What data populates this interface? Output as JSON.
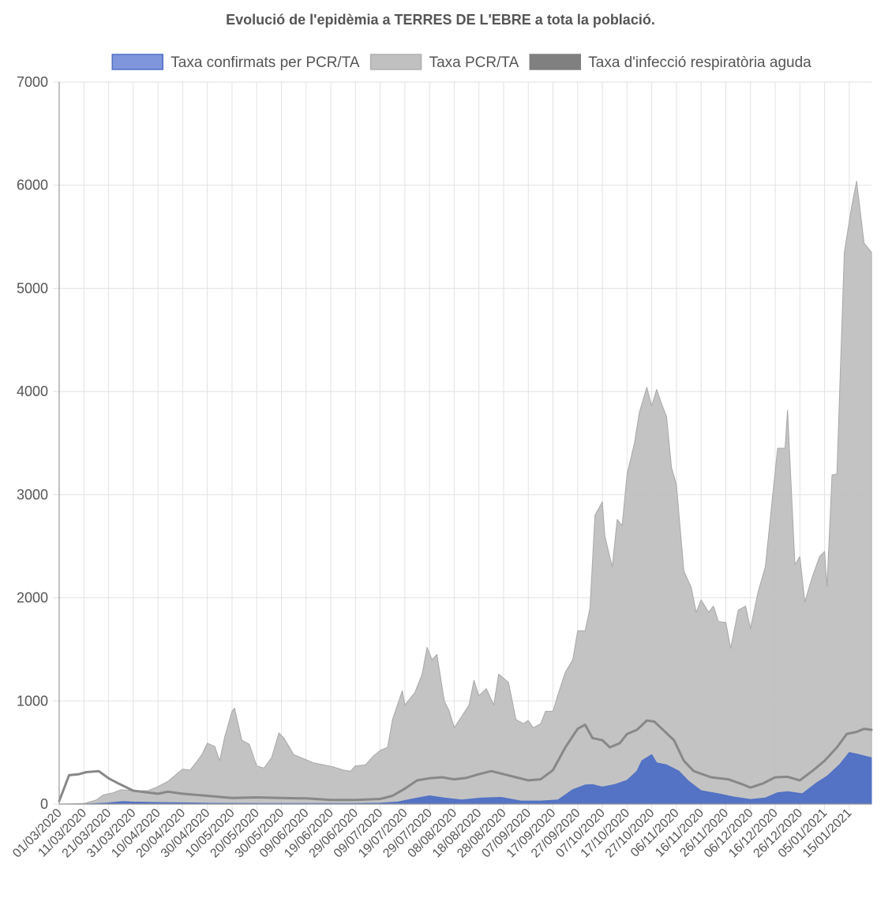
{
  "chart_data": {
    "type": "area",
    "title": "Evolució de l'epidèmia a TERRES DE L'EBRE a tota la població.",
    "xlabel": "",
    "ylabel": "",
    "ylim": [
      0,
      7000
    ],
    "yticks": [
      "0",
      "1000",
      "2000",
      "3000",
      "4000",
      "5000",
      "6000",
      "7000"
    ],
    "grid": true,
    "legend_position": "top",
    "x_start": "01/03/2020",
    "x_end": "24/01/2021",
    "x_tick_labels": [
      "01/03/2020",
      "11/03/2020",
      "21/03/2020",
      "31/03/2020",
      "10/04/2020",
      "20/04/2020",
      "30/04/2020",
      "10/05/2020",
      "20/05/2020",
      "30/05/2020",
      "09/06/2020",
      "19/06/2020",
      "29/06/2020",
      "09/07/2020",
      "19/07/2020",
      "29/07/2020",
      "08/08/2020",
      "18/08/2020",
      "28/08/2020",
      "07/09/2020",
      "17/09/2020",
      "27/09/2020",
      "07/10/2020",
      "17/10/2020",
      "27/10/2020",
      "06/11/2020",
      "16/11/2020",
      "26/11/2020",
      "06/12/2020",
      "16/12/2020",
      "26/12/2020",
      "05/01/2021",
      "15/01/2021"
    ],
    "series": [
      {
        "name": "Taxa PCR/TA",
        "style": "area",
        "color": "#c0c0c0",
        "stroke": "#a8a8a8",
        "points": [
          [
            "01/03/2020",
            0
          ],
          [
            "11/03/2020",
            5
          ],
          [
            "16/03/2020",
            40
          ],
          [
            "19/03/2020",
            90
          ],
          [
            "23/03/2020",
            110
          ],
          [
            "26/03/2020",
            140
          ],
          [
            "31/03/2020",
            130
          ],
          [
            "06/04/2020",
            130
          ],
          [
            "10/04/2020",
            170
          ],
          [
            "14/04/2020",
            220
          ],
          [
            "18/04/2020",
            300
          ],
          [
            "20/04/2020",
            340
          ],
          [
            "23/04/2020",
            330
          ],
          [
            "26/04/2020",
            420
          ],
          [
            "28/04/2020",
            490
          ],
          [
            "30/04/2020",
            590
          ],
          [
            "03/05/2020",
            560
          ],
          [
            "05/05/2020",
            420
          ],
          [
            "07/05/2020",
            650
          ],
          [
            "10/05/2020",
            900
          ],
          [
            "11/05/2020",
            930
          ],
          [
            "14/05/2020",
            620
          ],
          [
            "17/05/2020",
            580
          ],
          [
            "20/05/2020",
            370
          ],
          [
            "23/05/2020",
            350
          ],
          [
            "26/05/2020",
            450
          ],
          [
            "29/05/2020",
            690
          ],
          [
            "31/05/2020",
            640
          ],
          [
            "04/06/2020",
            480
          ],
          [
            "08/06/2020",
            440
          ],
          [
            "12/06/2020",
            400
          ],
          [
            "16/06/2020",
            380
          ],
          [
            "20/06/2020",
            360
          ],
          [
            "24/06/2020",
            330
          ],
          [
            "27/06/2020",
            320
          ],
          [
            "29/06/2020",
            370
          ],
          [
            "03/07/2020",
            380
          ],
          [
            "06/07/2020",
            460
          ],
          [
            "09/07/2020",
            520
          ],
          [
            "12/07/2020",
            550
          ],
          [
            "14/07/2020",
            820
          ],
          [
            "18/07/2020",
            1100
          ],
          [
            "19/07/2020",
            960
          ],
          [
            "23/07/2020",
            1080
          ],
          [
            "26/07/2020",
            1260
          ],
          [
            "28/07/2020",
            1520
          ],
          [
            "30/07/2020",
            1400
          ],
          [
            "01/08/2020",
            1450
          ],
          [
            "04/08/2020",
            1000
          ],
          [
            "06/08/2020",
            900
          ],
          [
            "08/08/2020",
            740
          ],
          [
            "11/08/2020",
            850
          ],
          [
            "14/08/2020",
            960
          ],
          [
            "16/08/2020",
            1200
          ],
          [
            "18/08/2020",
            1050
          ],
          [
            "21/08/2020",
            1120
          ],
          [
            "24/08/2020",
            960
          ],
          [
            "26/08/2020",
            1260
          ],
          [
            "30/08/2020",
            1180
          ],
          [
            "02/09/2020",
            820
          ],
          [
            "05/09/2020",
            780
          ],
          [
            "07/09/2020",
            810
          ],
          [
            "09/09/2020",
            740
          ],
          [
            "12/09/2020",
            780
          ],
          [
            "14/09/2020",
            900
          ],
          [
            "17/09/2020",
            900
          ],
          [
            "19/09/2020",
            1060
          ],
          [
            "22/09/2020",
            1280
          ],
          [
            "25/09/2020",
            1400
          ],
          [
            "27/09/2020",
            1680
          ],
          [
            "30/09/2020",
            1680
          ],
          [
            "02/10/2020",
            1900
          ],
          [
            "04/10/2020",
            2800
          ],
          [
            "07/10/2020",
            2930
          ],
          [
            "08/10/2020",
            2600
          ],
          [
            "11/10/2020",
            2300
          ],
          [
            "13/10/2020",
            2760
          ],
          [
            "15/10/2020",
            2700
          ],
          [
            "17/10/2020",
            3200
          ],
          [
            "20/10/2020",
            3500
          ],
          [
            "22/10/2020",
            3800
          ],
          [
            "25/10/2020",
            4040
          ],
          [
            "27/10/2020",
            3860
          ],
          [
            "29/10/2020",
            4020
          ],
          [
            "31/10/2020",
            3880
          ],
          [
            "02/11/2020",
            3760
          ],
          [
            "04/11/2020",
            3260
          ],
          [
            "06/11/2020",
            3100
          ],
          [
            "09/11/2020",
            2260
          ],
          [
            "12/11/2020",
            2100
          ],
          [
            "14/11/2020",
            1860
          ],
          [
            "16/11/2020",
            1980
          ],
          [
            "19/11/2020",
            1860
          ],
          [
            "21/11/2020",
            1920
          ],
          [
            "23/11/2020",
            1770
          ],
          [
            "26/11/2020",
            1760
          ],
          [
            "28/11/2020",
            1510
          ],
          [
            "01/12/2020",
            1880
          ],
          [
            "04/12/2020",
            1920
          ],
          [
            "06/12/2020",
            1700
          ],
          [
            "09/12/2020",
            2050
          ],
          [
            "12/12/2020",
            2300
          ],
          [
            "15/12/2020",
            3000
          ],
          [
            "17/12/2020",
            3450
          ],
          [
            "20/12/2020",
            3450
          ],
          [
            "21/12/2020",
            3820
          ],
          [
            "24/12/2020",
            2320
          ],
          [
            "26/12/2020",
            2400
          ],
          [
            "28/12/2020",
            1960
          ],
          [
            "31/12/2020",
            2200
          ],
          [
            "03/01/2021",
            2400
          ],
          [
            "05/01/2021",
            2450
          ],
          [
            "06/01/2021",
            2110
          ],
          [
            "08/01/2021",
            3190
          ],
          [
            "10/01/2021",
            3200
          ],
          [
            "13/01/2021",
            5350
          ],
          [
            "16/01/2021",
            5800
          ],
          [
            "18/01/2021",
            6040
          ],
          [
            "21/01/2021",
            5440
          ],
          [
            "24/01/2021",
            5350
          ]
        ]
      },
      {
        "name": "Taxa confirmats per PCR/TA",
        "style": "area",
        "color": "#4e6fc4",
        "legend_color": "#8096dc",
        "points": [
          [
            "01/03/2020",
            0
          ],
          [
            "11/03/2020",
            0
          ],
          [
            "20/03/2020",
            10
          ],
          [
            "27/03/2020",
            25
          ],
          [
            "31/03/2020",
            20
          ],
          [
            "10/04/2020",
            15
          ],
          [
            "20/04/2020",
            12
          ],
          [
            "01/05/2020",
            8
          ],
          [
            "20/05/2020",
            6
          ],
          [
            "09/06/2020",
            5
          ],
          [
            "29/06/2020",
            5
          ],
          [
            "09/07/2020",
            10
          ],
          [
            "16/07/2020",
            20
          ],
          [
            "22/07/2020",
            50
          ],
          [
            "29/07/2020",
            80
          ],
          [
            "04/08/2020",
            60
          ],
          [
            "11/08/2020",
            40
          ],
          [
            "19/08/2020",
            60
          ],
          [
            "27/08/2020",
            65
          ],
          [
            "04/09/2020",
            30
          ],
          [
            "12/09/2020",
            30
          ],
          [
            "19/09/2020",
            40
          ],
          [
            "25/09/2020",
            140
          ],
          [
            "30/09/2020",
            185
          ],
          [
            "03/10/2020",
            190
          ],
          [
            "07/10/2020",
            165
          ],
          [
            "12/10/2020",
            190
          ],
          [
            "17/10/2020",
            230
          ],
          [
            "21/10/2020",
            320
          ],
          [
            "23/10/2020",
            420
          ],
          [
            "27/10/2020",
            480
          ],
          [
            "29/10/2020",
            400
          ],
          [
            "02/11/2020",
            380
          ],
          [
            "07/11/2020",
            320
          ],
          [
            "11/11/2020",
            220
          ],
          [
            "16/11/2020",
            130
          ],
          [
            "23/11/2020",
            100
          ],
          [
            "29/11/2020",
            70
          ],
          [
            "06/12/2020",
            45
          ],
          [
            "12/12/2020",
            60
          ],
          [
            "17/12/2020",
            110
          ],
          [
            "21/12/2020",
            120
          ],
          [
            "27/12/2020",
            100
          ],
          [
            "02/01/2021",
            210
          ],
          [
            "06/01/2021",
            270
          ],
          [
            "11/01/2021",
            380
          ],
          [
            "15/01/2021",
            500
          ],
          [
            "19/01/2021",
            480
          ],
          [
            "24/01/2021",
            450
          ]
        ]
      },
      {
        "name": "Taxa d'infecció respiratòria aguda",
        "style": "line",
        "color": "#888888",
        "legend_color": "#808080",
        "points": [
          [
            "01/03/2020",
            30
          ],
          [
            "05/03/2020",
            280
          ],
          [
            "09/03/2020",
            290
          ],
          [
            "12/03/2020",
            310
          ],
          [
            "17/03/2020",
            320
          ],
          [
            "21/03/2020",
            250
          ],
          [
            "25/03/2020",
            200
          ],
          [
            "31/03/2020",
            130
          ],
          [
            "10/04/2020",
            100
          ],
          [
            "14/04/2020",
            120
          ],
          [
            "20/04/2020",
            100
          ],
          [
            "30/04/2020",
            80
          ],
          [
            "10/05/2020",
            60
          ],
          [
            "20/05/2020",
            65
          ],
          [
            "30/05/2020",
            60
          ],
          [
            "09/06/2020",
            55
          ],
          [
            "19/06/2020",
            40
          ],
          [
            "29/06/2020",
            40
          ],
          [
            "09/07/2020",
            50
          ],
          [
            "14/07/2020",
            80
          ],
          [
            "19/07/2020",
            150
          ],
          [
            "24/07/2020",
            230
          ],
          [
            "29/07/2020",
            250
          ],
          [
            "03/08/2020",
            260
          ],
          [
            "08/08/2020",
            240
          ],
          [
            "13/08/2020",
            255
          ],
          [
            "18/08/2020",
            290
          ],
          [
            "23/08/2020",
            320
          ],
          [
            "28/08/2020",
            290
          ],
          [
            "02/09/2020",
            260
          ],
          [
            "07/09/2020",
            230
          ],
          [
            "12/09/2020",
            240
          ],
          [
            "17/09/2020",
            330
          ],
          [
            "22/09/2020",
            550
          ],
          [
            "27/09/2020",
            730
          ],
          [
            "30/09/2020",
            770
          ],
          [
            "03/10/2020",
            640
          ],
          [
            "07/10/2020",
            620
          ],
          [
            "10/10/2020",
            550
          ],
          [
            "14/10/2020",
            590
          ],
          [
            "17/10/2020",
            680
          ],
          [
            "21/10/2020",
            720
          ],
          [
            "25/10/2020",
            810
          ],
          [
            "28/10/2020",
            800
          ],
          [
            "01/11/2020",
            710
          ],
          [
            "05/11/2020",
            620
          ],
          [
            "09/11/2020",
            420
          ],
          [
            "13/11/2020",
            320
          ],
          [
            "20/11/2020",
            260
          ],
          [
            "27/11/2020",
            240
          ],
          [
            "03/12/2020",
            190
          ],
          [
            "06/12/2020",
            160
          ],
          [
            "11/12/2020",
            200
          ],
          [
            "16/12/2020",
            260
          ],
          [
            "21/12/2020",
            265
          ],
          [
            "26/12/2020",
            230
          ],
          [
            "31/12/2020",
            320
          ],
          [
            "05/01/2021",
            420
          ],
          [
            "10/01/2021",
            550
          ],
          [
            "14/01/2021",
            680
          ],
          [
            "18/01/2021",
            700
          ],
          [
            "21/01/2021",
            730
          ],
          [
            "24/01/2021",
            720
          ]
        ]
      }
    ],
    "legend": [
      {
        "label": "Taxa confirmats per PCR/TA",
        "color": "#8096dc",
        "border": "#4e6fc4"
      },
      {
        "label": "Taxa PCR/TA",
        "color": "#c0c0c0",
        "border": "#b0b0b0"
      },
      {
        "label": "Taxa d'infecció respiratòria aguda",
        "color": "#808080",
        "border": "#808080"
      }
    ]
  }
}
